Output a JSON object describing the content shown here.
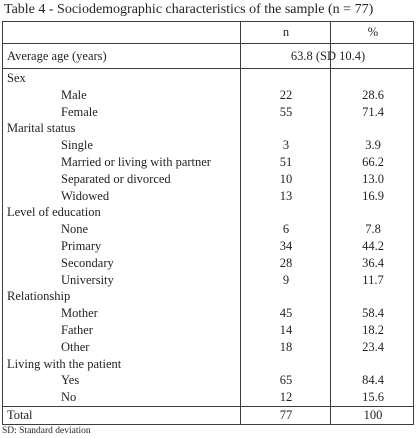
{
  "caption": "Table 4 - Sociodemographic characteristics of the sample (n = 77)",
  "header": {
    "n": "n",
    "pct": "%"
  },
  "average_age": {
    "label": "Average age (years)",
    "value": "63.8 (SD 10.4)"
  },
  "rows": [
    {
      "label": "Sex",
      "type": "section"
    },
    {
      "label": "Male",
      "type": "item",
      "n": "22",
      "pct": "28.6"
    },
    {
      "label": "Female",
      "type": "item",
      "n": "55",
      "pct": "71.4"
    },
    {
      "label": "Marital status",
      "type": "section"
    },
    {
      "label": "Single",
      "type": "item",
      "n": "3",
      "pct": "3.9"
    },
    {
      "label": "Married or living with partner",
      "type": "item",
      "n": "51",
      "pct": "66.2"
    },
    {
      "label": "Separated or divorced",
      "type": "item",
      "n": "10",
      "pct": "13.0"
    },
    {
      "label": "Widowed",
      "type": "item",
      "n": "13",
      "pct": "16.9"
    },
    {
      "label": "Level of education",
      "type": "section"
    },
    {
      "label": "None",
      "type": "item",
      "n": "6",
      "pct": "7.8"
    },
    {
      "label": "Primary",
      "type": "item",
      "n": "34",
      "pct": "44.2"
    },
    {
      "label": "Secondary",
      "type": "item",
      "n": "28",
      "pct": "36.4"
    },
    {
      "label": "University",
      "type": "item",
      "n": "9",
      "pct": "11.7"
    },
    {
      "label": "Relationship",
      "type": "section"
    },
    {
      "label": "Mother",
      "type": "item",
      "n": "45",
      "pct": "58.4"
    },
    {
      "label": "Father",
      "type": "item",
      "n": "14",
      "pct": "18.2"
    },
    {
      "label": "Other",
      "type": "item",
      "n": "18",
      "pct": "23.4"
    },
    {
      "label": "Living with the patient",
      "type": "section"
    },
    {
      "label": "Yes",
      "type": "item",
      "n": "65",
      "pct": "84.4"
    },
    {
      "label": "No",
      "type": "item",
      "n": "12",
      "pct": "15.6"
    }
  ],
  "total": {
    "label": "Total",
    "n": "77",
    "pct": "100"
  },
  "footnote": "SD: Standard deviation"
}
